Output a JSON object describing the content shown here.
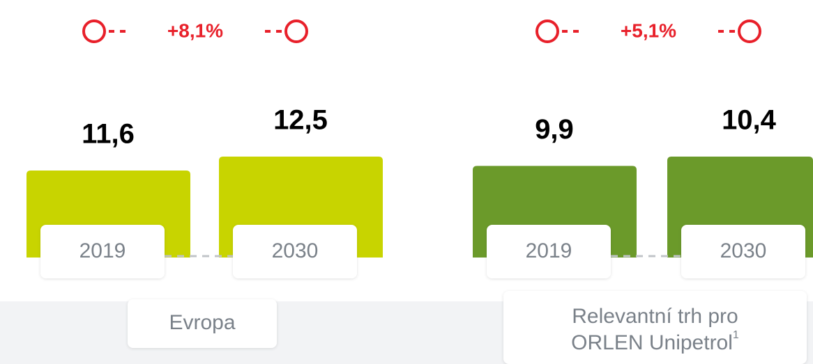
{
  "chart_data": [
    {
      "type": "bar",
      "xlabel": [
        "Evropa"
      ],
      "categories": [
        "2019",
        "2030"
      ],
      "values": [
        11.6,
        12.5
      ],
      "value_labels": [
        "11,6",
        "12,5"
      ],
      "color": "#c8d400",
      "annotation": "+8,1%"
    },
    {
      "type": "bar",
      "xlabel": [
        "Relevantní trh pro",
        "ORLEN Unipetrol"
      ],
      "xlabel_note": "1",
      "categories": [
        "2019",
        "2030"
      ],
      "values": [
        9.9,
        10.4
      ],
      "value_labels": [
        "9,9",
        "10,4"
      ],
      "color": "#6b9a2a",
      "annotation": "+5,1%"
    }
  ]
}
